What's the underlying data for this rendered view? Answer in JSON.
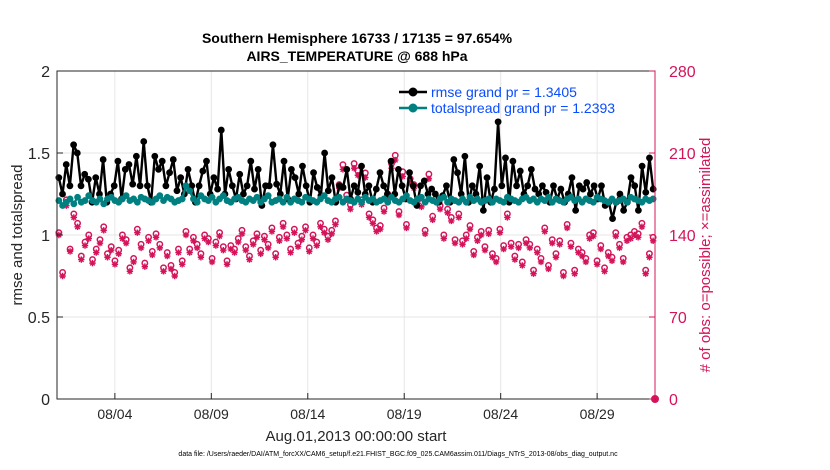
{
  "chart_data": {
    "type": "line",
    "title_line1": "Southern Hemisphere 16733 / 17135 = 97.654%",
    "title_line2": "AIRS_TEMPERATURE @ 688 hPa",
    "xlabel": "Aug.01,2013 00:00:00 start",
    "ylabel_left": "rmse and totalspread",
    "ylabel_right": "# of obs: o=possible; ×=assimilated",
    "xlim": [
      0,
      31
    ],
    "ylim_left": [
      0,
      2
    ],
    "ylim_right": [
      0,
      280
    ],
    "x_ticks": [
      {
        "value": 3,
        "label": "08/04"
      },
      {
        "value": 8,
        "label": "08/09"
      },
      {
        "value": 13,
        "label": "08/14"
      },
      {
        "value": 18,
        "label": "08/19"
      },
      {
        "value": 23,
        "label": "08/24"
      },
      {
        "value": 28,
        "label": "08/29"
      }
    ],
    "y_ticks_left": [
      "0",
      "0.5",
      "1",
      "1.5",
      "2"
    ],
    "y_ticks_right": [
      "0",
      "70",
      "140",
      "210",
      "280"
    ],
    "colors": {
      "rmse": "#000000",
      "spread": "#008080",
      "obs": "#d4145a",
      "legend_text": "#0a4cff",
      "grid": "#e6e6e6"
    },
    "series": [
      {
        "name": "rmse grand pr = 1.3405",
        "axis": "left",
        "values": [
          1.35,
          1.25,
          1.43,
          1.3,
          1.55,
          1.5,
          1.3,
          1.37,
          1.34,
          1.2,
          1.35,
          1.25,
          1.46,
          1.2,
          1.25,
          1.3,
          1.45,
          1.22,
          1.4,
          1.43,
          1.31,
          1.48,
          1.3,
          1.57,
          1.3,
          1.2,
          1.48,
          1.4,
          1.45,
          1.3,
          1.38,
          1.46,
          1.27,
          1.35,
          1.25,
          1.4,
          1.3,
          1.2,
          1.3,
          1.39,
          1.45,
          1.25,
          1.35,
          1.28,
          1.64,
          1.25,
          1.4,
          1.3,
          1.22,
          1.37,
          1.25,
          1.3,
          1.45,
          1.28,
          1.4,
          1.18,
          1.3,
          1.3,
          1.55,
          1.31,
          1.25,
          1.45,
          1.22,
          1.4,
          1.35,
          1.25,
          1.42,
          1.3,
          1.2,
          1.38,
          1.29,
          1.24,
          1.5,
          1.27,
          1.35,
          1.2,
          1.3,
          1.29,
          1.4,
          1.22,
          1.3,
          1.26,
          1.42,
          1.25,
          1.3,
          1.2,
          1.28,
          1.38,
          1.3,
          1.25,
          1.45,
          1.25,
          1.4,
          1.3,
          1.22,
          1.38,
          1.3,
          1.18,
          1.3,
          1.33,
          1.25,
          1.28,
          1.25,
          1.2,
          1.24,
          1.3,
          1.2,
          1.46,
          1.38,
          1.25,
          1.48,
          1.2,
          1.3,
          1.25,
          1.42,
          1.15,
          1.35,
          1.2,
          1.28,
          1.69,
          1.3,
          1.47,
          1.2,
          1.45,
          1.3,
          1.39,
          1.25,
          1.3,
          1.4,
          1.28,
          1.25,
          1.3,
          1.26,
          1.2,
          1.3,
          1.22,
          1.28,
          1.2,
          1.25,
          1.35,
          1.15,
          1.3,
          1.28,
          1.32,
          1.25,
          1.3,
          1.22,
          1.3,
          1.18,
          1.2,
          1.1,
          1.2,
          1.25,
          1.15,
          1.2,
          1.35,
          1.3,
          1.15,
          1.42,
          1.26,
          1.47,
          1.28
        ]
      },
      {
        "name": "totalspread grand pr = 1.2393",
        "axis": "left",
        "values": [
          1.21,
          1.18,
          1.2,
          1.22,
          1.19,
          1.23,
          1.2,
          1.21,
          1.24,
          1.21,
          1.2,
          1.22,
          1.19,
          1.22,
          1.23,
          1.21,
          1.2,
          1.22,
          1.24,
          1.21,
          1.22,
          1.2,
          1.23,
          1.22,
          1.21,
          1.2,
          1.22,
          1.24,
          1.21,
          1.23,
          1.22,
          1.2,
          1.21,
          1.22,
          1.3,
          1.27,
          1.22,
          1.2,
          1.24,
          1.22,
          1.21,
          1.23,
          1.2,
          1.22,
          1.24,
          1.21,
          1.2,
          1.22,
          1.23,
          1.21,
          1.2,
          1.22,
          1.21,
          1.23,
          1.2,
          1.22,
          1.24,
          1.2,
          1.21,
          1.22,
          1.2,
          1.23,
          1.2,
          1.22,
          1.21,
          1.2,
          1.23,
          1.22,
          1.21,
          1.2,
          1.22,
          1.24,
          1.21,
          1.2,
          1.22,
          1.23,
          1.2,
          1.22,
          1.21,
          1.2,
          1.22,
          1.2,
          1.23,
          1.21,
          1.22,
          1.2,
          1.21,
          1.22,
          1.2,
          1.23,
          1.21,
          1.2,
          1.22,
          1.24,
          1.21,
          1.2,
          1.22,
          1.23,
          1.2,
          1.22,
          1.21,
          1.2,
          1.22,
          1.23,
          1.2,
          1.22,
          1.21,
          1.2,
          1.22,
          1.2,
          1.23,
          1.21,
          1.22,
          1.2,
          1.21,
          1.22,
          1.2,
          1.22,
          1.21,
          1.2,
          1.23,
          1.22,
          1.21,
          1.2,
          1.22,
          1.23,
          1.21,
          1.22,
          1.2,
          1.22,
          1.21,
          1.23,
          1.2,
          1.22,
          1.21,
          1.2,
          1.22,
          1.23,
          1.21,
          1.22,
          1.2,
          1.22,
          1.21,
          1.2,
          1.23,
          1.22,
          1.21,
          1.2,
          1.22,
          1.2,
          1.21,
          1.22,
          1.2,
          1.23,
          1.22,
          1.21,
          1.2,
          1.22,
          1.21,
          1.22
        ]
      }
    ],
    "obs_possible_values": [
      142,
      108,
      170,
      128,
      158,
      150,
      122,
      134,
      140,
      119,
      128,
      136,
      147,
      124,
      130,
      118,
      127,
      140,
      136,
      112,
      120,
      145,
      132,
      116,
      138,
      126,
      141,
      132,
      112,
      125,
      114,
      108,
      128,
      118,
      143,
      128,
      138,
      132,
      124,
      140,
      137,
      120,
      134,
      142,
      130,
      118,
      131,
      128,
      137,
      144,
      130,
      122,
      135,
      141,
      127,
      139,
      132,
      146,
      124,
      138,
      150,
      140,
      128,
      145,
      133,
      139,
      147,
      129,
      140,
      134,
      150,
      145,
      139,
      144,
      152,
      183,
      200,
      174,
      166,
      201,
      195,
      170,
      193,
      158,
      153,
      146,
      148,
      163,
      175,
      201,
      208,
      160,
      194,
      149,
      188,
      183,
      170,
      167,
      144,
      192,
      156,
      172,
      165,
      140,
      162,
      155,
      136,
      158,
      135,
      140,
      148,
      126,
      138,
      143,
      130,
      144,
      124,
      120,
      145,
      131,
      158,
      133,
      122,
      132,
      117,
      136,
      132,
      110,
      128,
      120,
      146,
      114,
      136,
      124,
      135,
      108,
      149,
      133,
      110,
      128,
      125,
      120,
      140,
      142,
      118,
      131,
      112,
      125,
      121,
      142,
      132,
      120,
      138,
      140,
      143,
      141,
      150,
      110,
      124,
      138
    ],
    "obs_assimilated_values": [
      140,
      105,
      165,
      126,
      155,
      147,
      119,
      131,
      137,
      116,
      125,
      133,
      144,
      121,
      127,
      115,
      124,
      137,
      133,
      109,
      117,
      142,
      129,
      113,
      135,
      123,
      138,
      129,
      109,
      122,
      111,
      105,
      125,
      115,
      140,
      125,
      135,
      129,
      121,
      137,
      134,
      117,
      131,
      139,
      127,
      115,
      128,
      125,
      134,
      141,
      127,
      119,
      132,
      138,
      124,
      136,
      129,
      143,
      121,
      135,
      147,
      137,
      125,
      142,
      130,
      136,
      144,
      126,
      137,
      131,
      147,
      142,
      136,
      141,
      149,
      180,
      196,
      170,
      162,
      197,
      191,
      166,
      189,
      155,
      150,
      143,
      145,
      160,
      172,
      197,
      204,
      157,
      190,
      146,
      184,
      180,
      167,
      164,
      141,
      188,
      153,
      169,
      162,
      137,
      159,
      152,
      133,
      155,
      132,
      137,
      145,
      123,
      135,
      140,
      127,
      141,
      121,
      117,
      142,
      128,
      155,
      130,
      119,
      129,
      114,
      133,
      129,
      107,
      125,
      117,
      143,
      111,
      133,
      121,
      132,
      105,
      146,
      130,
      107,
      125,
      122,
      117,
      137,
      139,
      115,
      128,
      109,
      122,
      118,
      139,
      129,
      117,
      135,
      137,
      140,
      138,
      147,
      107,
      121,
      135
    ]
  },
  "footnote": "data file: /Users/raeder/DAI/ATM_forcXX/CAM6_setup/f.e21.FHIST_BGC.f09_025.CAM6assim.011/Diags_NTrS_2013-08/obs_diag_output.nc"
}
